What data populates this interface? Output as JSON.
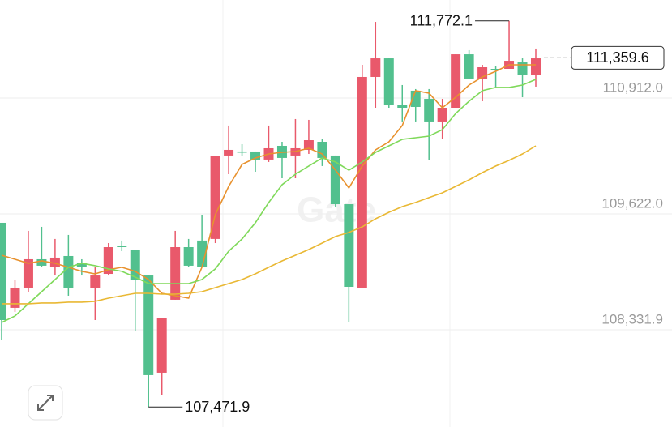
{
  "chart_data": {
    "type": "candlestick",
    "watermark": "Gate",
    "ylim": [
      107249,
      112004
    ],
    "yticks": [
      {
        "value": 108331.9,
        "label": "108,331.9"
      },
      {
        "value": 109622.0,
        "label": "109,622.0"
      },
      {
        "value": 110912.0,
        "label": "110,912.0"
      }
    ],
    "grid": true,
    "up_color": "#52c08e",
    "down_color": "#e9596b",
    "open": [
      108440,
      108801,
      109117,
      109045,
      109135,
      108801,
      109027,
      108936,
      109252,
      109252,
      108891,
      107827,
      108458,
      109252,
      109045,
      109027,
      110263,
      110335,
      110308,
      110218,
      110353,
      110245,
      110353,
      110443,
      110245,
      109730,
      108810,
      111147,
      111354,
      110831,
      110804,
      110813,
      110651,
      110804,
      111399,
      111129,
      111255,
      111219,
      111327,
      111174,
      111354
    ],
    "high": [
      109523,
      108891,
      109433,
      109478,
      109343,
      109388,
      109117,
      109027,
      109297,
      109325,
      109225,
      108936,
      108458,
      109433,
      109343,
      109613,
      110263,
      110606,
      110398,
      110317,
      110606,
      110425,
      110678,
      110669,
      110452,
      110272,
      109730,
      111282,
      111760,
      111354,
      111057,
      111012,
      111012,
      110903,
      111399,
      111445,
      111282,
      111264,
      111772.1,
      111354,
      111463
    ],
    "low": [
      108215,
      108531,
      108756,
      109027,
      108936,
      108711,
      108936,
      108440,
      108936,
      109207,
      108323,
      107471.9,
      107601,
      108666,
      109027,
      109027,
      109297,
      110064,
      110263,
      110091,
      110200,
      110019,
      110019,
      110290,
      110155,
      109703,
      108413,
      108801,
      110804,
      110804,
      110651,
      110651,
      110218,
      110452,
      110804,
      111129,
      110876,
      111030,
      111237,
      110921,
      111039
    ],
    "close": [
      109523,
      108576,
      108801,
      109117,
      109027,
      109153,
      109072,
      108801,
      108954,
      109270,
      109225,
      108936,
      107854,
      108666,
      109252,
      109325,
      109343,
      110272,
      110317,
      110317,
      110227,
      110380,
      110272,
      110335,
      110425,
      110272,
      109730,
      108801,
      111147,
      111354,
      110831,
      110994,
      110903,
      110651,
      110804,
      111399,
      111129,
      111237,
      111237,
      111309,
      111174
    ],
    "lines": [
      {
        "color": "#e8912d",
        "values": [
          109162,
          109117,
          109072,
          109099,
          109072,
          109027,
          108982,
          108954,
          109000,
          109027,
          108982,
          108891,
          108738,
          108711,
          108684,
          109027,
          109613,
          109929,
          110173,
          110245,
          110290,
          110308,
          110317,
          110353,
          110290,
          110109,
          109911,
          110155,
          110335,
          110425,
          110606,
          110994,
          110966,
          110804,
          110921,
          111057,
          111147,
          111210,
          111282,
          111282,
          111282
        ]
      },
      {
        "color": "#7fd95a",
        "values": [
          108413,
          108485,
          108621,
          108756,
          108891,
          109027,
          109072,
          109045,
          109009,
          108982,
          108918,
          108846,
          108846,
          108846,
          108846,
          108891,
          109009,
          109207,
          109343,
          109523,
          109749,
          109947,
          110064,
          110155,
          110245,
          110200,
          110109,
          110200,
          110308,
          110380,
          110452,
          110470,
          110488,
          110560,
          110741,
          110876,
          110994,
          111030,
          111030,
          111057,
          111120
        ]
      },
      {
        "color": "#e9b834",
        "values": [
          108621,
          108621,
          108621,
          108630,
          108630,
          108639,
          108639,
          108648,
          108684,
          108711,
          108738,
          108738,
          108729,
          108729,
          108738,
          108756,
          108801,
          108846,
          108891,
          108954,
          109027,
          109099,
          109162,
          109225,
          109297,
          109370,
          109415,
          109478,
          109568,
          109640,
          109703,
          109749,
          109803,
          109857,
          109929,
          110001,
          110082,
          110155,
          110218,
          110290,
          110380
        ]
      }
    ],
    "max_label": "111,772.1",
    "min_label": "107,471.9",
    "last_price": {
      "value": 111359.6,
      "label": "111,359.6"
    }
  }
}
